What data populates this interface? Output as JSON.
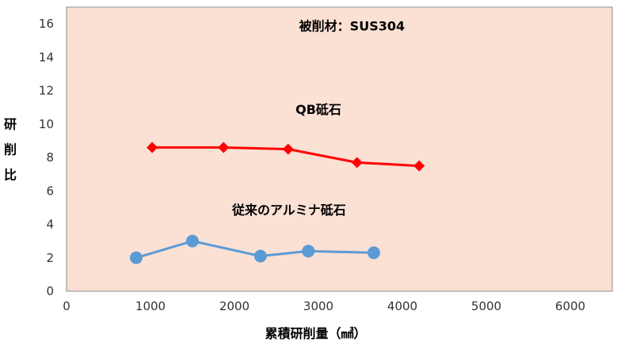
{
  "chart_data": {
    "type": "line",
    "xlabel": "累積研削量（㎣）",
    "ylabel": "研削比",
    "xlim": [
      0,
      6500
    ],
    "ylim": [
      0,
      17
    ],
    "x_ticks": [
      0,
      1000,
      2000,
      3000,
      4000,
      5000,
      6000
    ],
    "y_ticks": [
      0,
      2,
      4,
      6,
      8,
      10,
      12,
      14,
      16
    ],
    "grid": false,
    "background_color": "#fbe0d4",
    "annotations": [
      {
        "key": "material",
        "text": "被削材：SUS304",
        "x": 3400,
        "y": 15.6
      },
      {
        "key": "qb",
        "text": "QB砥石",
        "x": 3000,
        "y": 10.6
      },
      {
        "key": "alumina",
        "text": "従来のアルミナ砥石",
        "x": 2650,
        "y": 4.6
      }
    ],
    "series": [
      {
        "id": "qb",
        "color": "#ff0000",
        "marker": "diamond",
        "x": [
          1020,
          1870,
          2640,
          3460,
          4200
        ],
        "y": [
          8.6,
          8.6,
          8.5,
          7.7,
          7.5
        ]
      },
      {
        "id": "alumina",
        "color": "#5b9bd5",
        "marker": "circle",
        "x": [
          830,
          1500,
          2310,
          2880,
          3660
        ],
        "y": [
          2.0,
          3.0,
          2.1,
          2.4,
          2.3
        ]
      }
    ]
  }
}
